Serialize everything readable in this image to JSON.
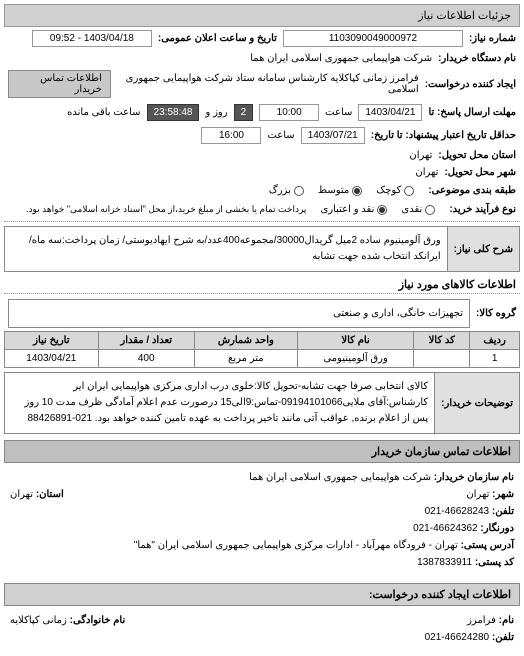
{
  "header": {
    "title": "جزئیات اطلاعات نیاز"
  },
  "form": {
    "request_no_label": "شماره نیاز:",
    "request_no": "1103090049000972",
    "public_date_label": "تاریخ و ساعت اعلان عمومی:",
    "public_date": "1403/04/18 - 09:52",
    "buyer_name_label": "نام دستگاه خریدار:",
    "buyer_name": "شرکت هواپیمایی جمهوری اسلامی ایران هما",
    "requester_label": "ایجاد کننده درخواست:",
    "requester": "فرامرز زمانی کپاکلایه کارشناس سامانه ستاد شرکت هواپیمایی جمهوری اسلامی",
    "contact_btn": "اطلاعات تماس خریدار",
    "deadline_send_label": "مهلت ارسال پاسخ: تا",
    "deadline_date": "1403/04/21",
    "deadline_time_label": "ساعت",
    "deadline_time": "10:00",
    "remaining_days": "2",
    "remaining_days_label": "روز و",
    "remaining_time": "23:58:48",
    "remaining_label": "ساعت باقی مانده",
    "validity_label": "حداقل تاریخ اعتبار پیشنهاد: تا تاریخ:",
    "validity_date": "1403/07/21",
    "validity_time_label": "ساعت",
    "validity_time": "16:00",
    "province_label": "استان محل تحویل:",
    "province": "تهران",
    "city_label": "شهر محل تحویل:",
    "city": "تهران",
    "budget_label": "طبقه بندی موضوعی:",
    "budget_options": {
      "small": "کوچک",
      "medium": "متوسط",
      "large": "بزرگ"
    },
    "payment_label": "نوع فرآیند خرید:",
    "payment_note": "پرداخت تمام یا بخشی از مبلغ خرید،از محل \"اسناد خزانه اسلامی\" خواهد بود.",
    "payment_options": {
      "cash": "نقدی",
      "credit": "نقد و اعتباری"
    }
  },
  "desc": {
    "label": "شرح کلی نیاز:",
    "text": "ورق آلومینیوم ساده 2میل گریدال30000/مجموعه400عدد/به شرح ایهادیوستی/ زمان پرداخت:سه ماه/ایرانکد انتخاب شده جهت تشابه"
  },
  "goods": {
    "title": "اطلاعات کالاهای مورد نیاز",
    "group_label": "گروه کالا:",
    "group_value": "تجهیزات خانگی، اداری و صنعتی"
  },
  "table": {
    "headers": [
      "ردیف",
      "کد کالا",
      "نام کالا",
      "واحد شمارش",
      "تعداد / مقدار",
      "تاریخ نیاز"
    ],
    "rows": [
      [
        "1",
        "",
        "ورق آلومینیومی",
        "متر مربع",
        "400",
        "1403/04/21"
      ]
    ]
  },
  "buyer_desc": {
    "label": "توضیحات خریدار:",
    "text": "کالای انتخابی صرفا جهت تشابه-تحویل کالا:خلوی درب اداری مرکزی هواپیمایی ایران ایر کارشناس:آقای ملایی09194101066-تماس:9الی15 درصورت عدم اعلام آمادگی ظرف مدت 10 روز پس از اعلام برنده, عواقب آتی مانند تاخیر پرداخت به عهده تامین کننده خواهد بود."
  },
  "phone": "021-88426891",
  "contact": {
    "header": "اطلاعات تماس سازمان خریدار",
    "org_label": "نام سازمان خریدار:",
    "org": "شرکت هواپیمایی جمهوری اسلامی ایران هما",
    "city_label": "شهر:",
    "city": "تهران",
    "province_label": "استان:",
    "province": "تهران",
    "tel_label": "تلفن:",
    "tel": "46628243-021",
    "fax_label": "دورنگار:",
    "fax": "46624362-021",
    "address_label": "آدرس پستی:",
    "address": "تهران - فرودگاه مهرآباد - ادارات مرکزی هواپیمایی جمهوری اسلامی ایران \"هما\"",
    "postal_label": "کد پستی:",
    "postal": "1387833911"
  },
  "creator": {
    "header": "اطلاعات ایجاد کننده درخواست:",
    "name_label": "نام:",
    "name": "فرامرز",
    "family_label": "نام خانوادگی:",
    "family": "زمانی کپاکلایه",
    "tel_label": "تلفن:",
    "tel": "46624280-021"
  }
}
